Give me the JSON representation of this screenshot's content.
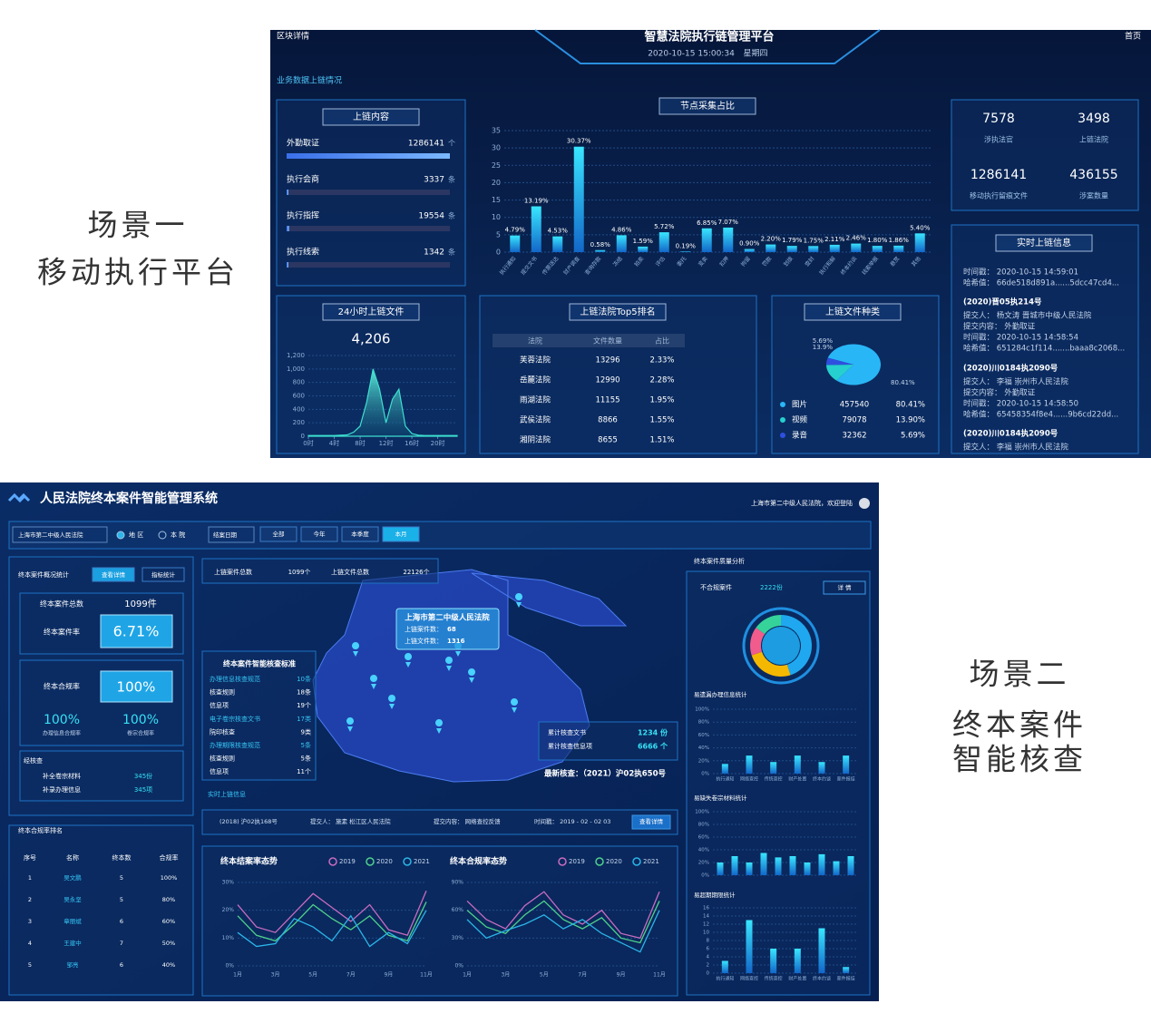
{
  "captions": {
    "scene1": [
      "场景一",
      "移动执行平台"
    ],
    "scene2": [
      "场景二",
      "终本案件",
      "智能核查"
    ]
  },
  "screen1": {
    "header": {
      "left": "区块详情",
      "title": "智慧法院执行链管理平台",
      "datetime": "2020-10-15 15:00:34",
      "weekday": "星期四",
      "right": "首页"
    },
    "section_label": "业务数据上链情况",
    "uplink": {
      "title": "上链内容",
      "items": [
        {
          "name": "外勤取证",
          "value": 1286141,
          "unit": "个"
        },
        {
          "name": "执行会商",
          "value": 3337,
          "unit": "条"
        },
        {
          "name": "执行指挥",
          "value": 19554,
          "unit": "条"
        },
        {
          "name": "执行线索",
          "value": 1342,
          "unit": "条"
        }
      ]
    },
    "node_chart": {
      "type": "bar",
      "title": "节点采集占比",
      "categories": [
        "执行通知",
        "提交文书",
        "传票送达",
        "财产调查",
        "查询存款",
        "冻结",
        "拍卖",
        "评估",
        "委托",
        "变卖",
        "扣押",
        "拘留",
        "罚款",
        "划拨",
        "查封",
        "执行和解",
        "终本约谈",
        "线索举报",
        "悬赏",
        "其他"
      ],
      "values": [
        4.79,
        13.19,
        4.53,
        30.37,
        0.58,
        4.86,
        1.59,
        5.72,
        0.19,
        6.85,
        7.07,
        0.9,
        2.2,
        1.79,
        1.75,
        2.11,
        2.46,
        1.8,
        1.86,
        5.4
      ],
      "value_labels": [
        "4.79%",
        "13.19%",
        "4.53%",
        "30.37%",
        "0.58%",
        "4.86%",
        "1.59%",
        "5.72%",
        "0.19%",
        "6.85%",
        "7.07%",
        "0.90%",
        "2.20%",
        "1.79%",
        "1.75%",
        "2.11%",
        "2.46%",
        "1.80%",
        "1.86%",
        "5.40%"
      ],
      "ylim": [
        0,
        35
      ],
      "yticks": [
        0,
        5,
        10,
        15,
        20,
        25,
        30,
        35
      ],
      "color": "#27c3f0"
    },
    "stats": [
      {
        "value": 7578,
        "label": "涉执法官"
      },
      {
        "value": 3498,
        "label": "上链法院"
      },
      {
        "value": 1286141,
        "label": "移动执行留痕文件"
      },
      {
        "value": 436155,
        "label": "涉案数量"
      }
    ],
    "realtime": {
      "title": "实时上链信息",
      "groups": [
        [
          "时间戳： 2020-10-15 14:59:01",
          "哈希值： 66de518d891a......5dcc47cd4..."
        ],
        [
          "(2020)晋05执214号",
          "提交人： 杨文涛 晋城市中级人民法院",
          "提交内容： 外勤取证",
          "时间戳： 2020-10-15 14:58:54",
          "哈希值： 651284c1f114.......baaa8c2068..."
        ],
        [
          "(2020)川0184执2090号",
          "提交人： 李福 崇州市人民法院",
          "提交内容： 外勤取证",
          "时间戳： 2020-10-15 14:58:50",
          "哈希值： 65458354f8e4......9b6cd22dd..."
        ],
        [
          "(2020)川0184执2090号",
          "提交人： 李福 崇州市人民法院"
        ]
      ]
    },
    "hourly": {
      "type": "area",
      "title": "24小时上链文件",
      "total": "4,206",
      "x": [
        0,
        1,
        2,
        3,
        4,
        5,
        6,
        7,
        8,
        9,
        10,
        11,
        12,
        13,
        14,
        15,
        16,
        17,
        18,
        19,
        20,
        21,
        22,
        23
      ],
      "values": [
        10,
        10,
        10,
        10,
        10,
        15,
        20,
        60,
        150,
        500,
        1000,
        700,
        200,
        550,
        700,
        150,
        40,
        15,
        10,
        10,
        10,
        10,
        10,
        10
      ],
      "xlim": [
        0,
        23
      ],
      "xticks": [
        {
          "value": 0,
          "label": "0时"
        },
        {
          "value": 4,
          "label": "4时"
        },
        {
          "value": 8,
          "label": "8时"
        },
        {
          "value": 12,
          "label": "12时"
        },
        {
          "value": 16,
          "label": "16时"
        },
        {
          "value": 20,
          "label": "20时"
        }
      ],
      "ylim": [
        0,
        1200
      ],
      "yticks": [
        0,
        200,
        400,
        600,
        800,
        {
          "value": 1000,
          "label": "1,000"
        },
        {
          "value": 1200,
          "label": "1,200"
        }
      ],
      "color": "#3de0d0"
    },
    "top5": {
      "title": "上链法院Top5排名",
      "columns": [
        "法院",
        "文件数量",
        "占比"
      ],
      "rows": [
        [
          "芙蓉法院",
          13296,
          "2.33%"
        ],
        [
          "岳麓法院",
          12990,
          "2.28%"
        ],
        [
          "雨湖法院",
          11155,
          "1.95%"
        ],
        [
          "武侯法院",
          8866,
          "1.55%"
        ],
        [
          "湘阴法院",
          8655,
          "1.51%"
        ]
      ]
    },
    "file_types": {
      "type": "pie",
      "title": "上链文件种类",
      "items": [
        {
          "name": "图片",
          "count": 457540,
          "share": 80.41,
          "share_label": "80.41%",
          "pie_label": "80.41%",
          "color": "#29b6f6"
        },
        {
          "name": "视频",
          "count": 79078,
          "share": 13.9,
          "share_label": "13.90%",
          "pie_label": "13.9%",
          "color": "#26d0ce"
        },
        {
          "name": "录音",
          "count": 32362,
          "share": 5.69,
          "share_label": "5.69%",
          "pie_label": "5.69%",
          "color": "#2f4fe0"
        }
      ]
    }
  },
  "screen2": {
    "header": {
      "title": "人民法院终本案件智能管理系统",
      "user": "上海市第二中级人民法院，欢迎登陆"
    },
    "filters": {
      "court": "上海市第二中级人民法院",
      "radios": [
        "地 区",
        "本 院"
      ],
      "date": "结案日期",
      "buttons": [
        "全部",
        "今年",
        "本季度",
        "本月"
      ]
    },
    "overview": {
      "title": "终本案件概况统计",
      "tabs": [
        "查看详情",
        "指标统计"
      ],
      "total_label": "终本案件总数",
      "total": "1099件",
      "rate_label": "终本案件率",
      "rate": "6.71%",
      "compliance_label": "终本合规率",
      "compliance": "100%",
      "sub": [
        {
          "value": "100%",
          "label": "办理信息合规率"
        },
        {
          "value": "100%",
          "label": "卷宗合规率"
        }
      ],
      "checked_title": "经核查",
      "checked": [
        {
          "label": "补全卷宗材料",
          "value": "345份"
        },
        {
          "label": "补录办理信息",
          "value": "345项"
        }
      ]
    },
    "ranking": {
      "title": "终本合规率排名",
      "columns": [
        "序号",
        "名称",
        "终本数",
        "合规率"
      ],
      "rows": [
        [
          "1",
          "吴文鹏",
          "5",
          "100%"
        ],
        [
          "2",
          "吴永坚",
          "5",
          "80%"
        ],
        [
          "3",
          "章丽斌",
          "6",
          "60%"
        ],
        [
          "4",
          "王建中",
          "7",
          "50%"
        ],
        [
          "5",
          "邹亮",
          "6",
          "40%"
        ]
      ]
    },
    "totals": [
      {
        "label": "上链案件总数",
        "value": "1099个"
      },
      {
        "label": "上链文件总数",
        "value": "22126个"
      }
    ],
    "popup": {
      "title": "上海市第二中级人民法院",
      "rows": [
        {
          "label": "上链案件数：",
          "value": "68"
        },
        {
          "label": "上链文件数：",
          "value": "1316"
        }
      ]
    },
    "standard": {
      "title": "终本案件智能核查标准",
      "items": [
        {
          "name": "办理信息核查规范",
          "value": "10条"
        },
        {
          "name": "核查规则",
          "value": "18条"
        },
        {
          "name": "信息项",
          "value": "19个"
        },
        {
          "name": "电子卷宗核查文书",
          "value": "17类"
        },
        {
          "name": "院印核查",
          "value": "9类"
        },
        {
          "name": "办理期限核查规范",
          "value": "5条"
        },
        {
          "name": "核查规则",
          "value": "5条"
        },
        {
          "name": "信息项",
          "value": "11个"
        }
      ]
    },
    "check_stats": {
      "rows": [
        {
          "label": "累计核查文书",
          "value": "1234 份"
        },
        {
          "label": "累计核查信息项",
          "value": "6666 个"
        }
      ],
      "latest": "最新核查：（2021）沪02执650号"
    },
    "realtime": {
      "title": "实时上链信息",
      "case": "(2018) 沪02执168号",
      "submitter": "提交人： 施素   松江区人民法院",
      "content": "提交内容： 网络查控反馈",
      "timestamp": "时间戳： 2019 - 02 - 02 03",
      "button": "查看详情"
    },
    "closing_trend": {
      "type": "line",
      "title": "终本结案率态势",
      "categories": [
        "1月",
        null,
        "3月",
        null,
        "5月",
        null,
        "7月",
        null,
        "9月",
        null,
        "11月"
      ],
      "ylim": [
        0,
        30
      ],
      "yticks": [
        {
          "value": 0,
          "label": "0%"
        },
        {
          "value": 10,
          "label": "10%"
        },
        {
          "value": 20,
          "label": "20%"
        },
        {
          "value": 30,
          "label": "30%"
        }
      ],
      "series": [
        {
          "name": "2019",
          "color": "#c96cc0",
          "values": [
            22,
            14,
            12,
            19,
            26,
            21,
            16,
            22,
            13,
            11,
            27
          ]
        },
        {
          "name": "2020",
          "color": "#4fd18b",
          "values": [
            18,
            11,
            9,
            15,
            22,
            17,
            13,
            18,
            11,
            9,
            23
          ]
        },
        {
          "name": "2021",
          "color": "#2bb5e8",
          "values": [
            12,
            7,
            8,
            17,
            14,
            9,
            18,
            7,
            12,
            8,
            20
          ]
        }
      ]
    },
    "compliance_trend": {
      "type": "line",
      "title": "终本合规率态势",
      "categories": [
        "1月",
        null,
        "3月",
        null,
        "5月",
        null,
        "7月",
        null,
        "9月",
        null,
        "11月"
      ],
      "ylim": [
        0,
        90
      ],
      "yticks": [
        {
          "value": 0,
          "label": "0%"
        },
        {
          "value": 30,
          "label": "30%"
        },
        {
          "value": 60,
          "label": "60%"
        },
        {
          "value": 90,
          "label": "90%"
        }
      ],
      "series": [
        {
          "name": "2019",
          "color": "#c96cc0",
          "values": [
            70,
            50,
            40,
            65,
            80,
            55,
            45,
            60,
            35,
            30,
            80
          ]
        },
        {
          "name": "2020",
          "color": "#4fd18b",
          "values": [
            60,
            42,
            35,
            55,
            70,
            50,
            40,
            52,
            30,
            25,
            70
          ]
        },
        {
          "name": "2021",
          "color": "#2bb5e8",
          "values": [
            50,
            30,
            38,
            45,
            55,
            40,
            50,
            35,
            25,
            15,
            60
          ]
        }
      ]
    },
    "quality": {
      "title": "终本案件质量分析",
      "label": "不合规案件",
      "value": "2222份",
      "button": "详 情",
      "donut": [
        {
          "value": 45,
          "color": "#1fa8f0"
        },
        {
          "value": 25,
          "color": "#f5b800"
        },
        {
          "value": 15,
          "color": "#f25c8c"
        },
        {
          "value": 15,
          "color": "#35d39a"
        }
      ]
    },
    "missing_info": {
      "type": "bar",
      "title": "易遗漏办理信息统计",
      "categories": [
        "执行通知",
        "网络查控",
        "传统查控",
        "财产处置",
        "终本约谈",
        "案件报结"
      ],
      "values": [
        15,
        28,
        18,
        28,
        18,
        28
      ],
      "color": "#27d3e0",
      "ylim": [
        0,
        100
      ],
      "yticks": [
        {
          "value": 0,
          "label": "0%"
        },
        {
          "value": 20,
          "label": "20%"
        },
        {
          "value": 40,
          "label": "40%"
        },
        {
          "value": 60,
          "label": "60%"
        },
        {
          "value": 80,
          "label": "80%"
        },
        {
          "value": 100,
          "label": "100%"
        }
      ]
    },
    "missing_files": {
      "type": "bar",
      "title": "易缺失卷宗材料统计",
      "categories": [
        null,
        null,
        null,
        null,
        null,
        null,
        null,
        null,
        null,
        null
      ],
      "values": [
        20,
        30,
        20,
        35,
        28,
        30,
        20,
        33,
        22,
        30
      ],
      "color": "#27d3e0",
      "ylim": [
        0,
        100
      ],
      "yticks": [
        {
          "value": 0,
          "label": "0%"
        },
        {
          "value": 20,
          "label": "20%"
        },
        {
          "value": 40,
          "label": "40%"
        },
        {
          "value": 60,
          "label": "60%"
        },
        {
          "value": 80,
          "label": "80%"
        },
        {
          "value": 100,
          "label": "100%"
        }
      ]
    },
    "overdue": {
      "type": "bar",
      "title": "易超期期限统计",
      "categories": [
        "执行通知",
        "网络查控",
        "传统查控",
        "财产处置",
        "终本约谈",
        "案件报结"
      ],
      "values": [
        3,
        13,
        6,
        6,
        11,
        1.5
      ],
      "color": "#27d3e0",
      "ylim": [
        0,
        16
      ],
      "yticks": [
        0,
        2,
        4,
        6,
        8,
        10,
        12,
        14,
        16
      ]
    }
  }
}
